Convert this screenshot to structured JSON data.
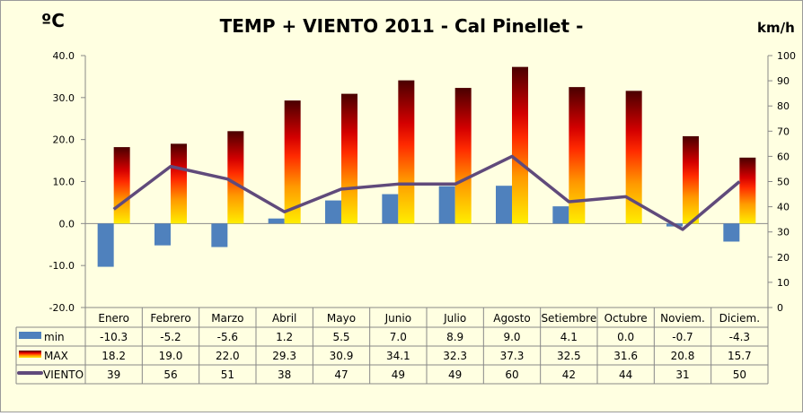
{
  "chart_data": {
    "type": "bar+line",
    "title": "TEMP + VIENTO 2011 - Cal Pinellet -",
    "ylabel_left": "ºC",
    "ylabel_right": "km/h",
    "categories": [
      "Enero",
      "Febrero",
      "Marzo",
      "Abril",
      "Mayo",
      "Junio",
      "Julio",
      "Agosto",
      "Setiembre",
      "Octubre",
      "Noviem.",
      "Diciem."
    ],
    "ylim_left": [
      -20,
      40
    ],
    "yticks_left": [
      "40.0",
      "30.0",
      "20.0",
      "10.0",
      "0.0",
      "-10.0",
      "-20.0"
    ],
    "ylim_right": [
      0,
      100
    ],
    "yticks_right": [
      "100",
      "90",
      "80",
      "70",
      "60",
      "50",
      "40",
      "30",
      "20",
      "10",
      "0"
    ],
    "grid": false,
    "legend": "data-table",
    "series": [
      {
        "name": "min",
        "type": "bar",
        "axis": "left",
        "color": "#4F81BD",
        "values": [
          -10.3,
          -5.2,
          -5.6,
          1.2,
          5.5,
          7.0,
          8.9,
          9.0,
          4.1,
          0.0,
          -0.7,
          -4.3
        ],
        "labels": [
          "-10.3",
          "-5.2",
          "-5.6",
          "1.2",
          "5.5",
          "7.0",
          "8.9",
          "9.0",
          "4.1",
          "0.0",
          "-0.7",
          "-4.3"
        ]
      },
      {
        "name": "MAX",
        "type": "bar",
        "axis": "left",
        "color": "gradient",
        "values": [
          18.2,
          19.0,
          22.0,
          29.3,
          30.9,
          34.1,
          32.3,
          37.3,
          32.5,
          31.6,
          20.8,
          15.7
        ],
        "labels": [
          "18.2",
          "19.0",
          "22.0",
          "29.3",
          "30.9",
          "34.1",
          "32.3",
          "37.3",
          "32.5",
          "31.6",
          "20.8",
          "15.7"
        ]
      },
      {
        "name": "VIENTO",
        "type": "line",
        "axis": "right",
        "color": "#604A7B",
        "values": [
          39,
          56,
          51,
          38,
          47,
          49,
          49,
          60,
          42,
          44,
          31,
          50
        ],
        "labels": [
          "39",
          "56",
          "51",
          "38",
          "47",
          "49",
          "49",
          "60",
          "42",
          "44",
          "31",
          "50"
        ]
      }
    ]
  }
}
